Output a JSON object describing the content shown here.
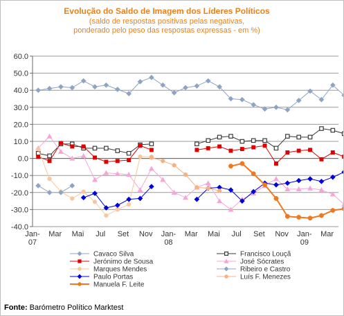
{
  "chart_data": {
    "type": "line",
    "title": "Evolução do Saldo  de Imagem dos Líderes Políticos",
    "subtitle_lines": [
      "(saldo de respostas positivas pelas negativas,",
      "ponderado pelo peso das respostas expressas - em %)"
    ],
    "ylim": [
      -40,
      60
    ],
    "y_ticks": [
      "60.0",
      "50.0",
      "40.0",
      "30.0",
      "20.0",
      "10.0",
      "0.0",
      "-10.0",
      "-20.0",
      "-30.0",
      "-40.0"
    ],
    "y_tick_values": [
      60,
      50,
      40,
      30,
      20,
      10,
      0,
      -10,
      -20,
      -30,
      -40
    ],
    "x_count": 27,
    "x_tick_labels": [
      {
        "i": 0,
        "lines": [
          "Jan-",
          "07"
        ]
      },
      {
        "i": 2,
        "lines": [
          "Mar"
        ]
      },
      {
        "i": 4,
        "lines": [
          "Mai"
        ]
      },
      {
        "i": 6,
        "lines": [
          "Jul"
        ]
      },
      {
        "i": 8,
        "lines": [
          "Set"
        ]
      },
      {
        "i": 10,
        "lines": [
          "Nov"
        ]
      },
      {
        "i": 12,
        "lines": [
          "Jan-",
          "08"
        ]
      },
      {
        "i": 14,
        "lines": [
          "Mar"
        ]
      },
      {
        "i": 16,
        "lines": [
          "Mai"
        ]
      },
      {
        "i": 18,
        "lines": [
          "Jul"
        ]
      },
      {
        "i": 20,
        "lines": [
          "Set"
        ]
      },
      {
        "i": 22,
        "lines": [
          "Nov"
        ]
      },
      {
        "i": 24,
        "lines": [
          "Jan-",
          "09"
        ]
      },
      {
        "i": 26,
        "lines": [
          "Mar"
        ]
      }
    ],
    "grid": "horizontal",
    "legend_position": "bottom",
    "series": [
      {
        "name": "Cavaco Silva",
        "color": "#8ea4c4",
        "marker": "diamond",
        "points": [
          [
            0,
            40.0
          ],
          [
            1,
            41.0
          ],
          [
            2,
            42.0
          ],
          [
            3,
            41.5
          ],
          [
            4,
            45.5
          ],
          [
            5,
            42.0
          ],
          [
            6,
            43.0
          ],
          [
            7,
            40.5
          ],
          [
            8,
            38.0
          ],
          [
            9,
            45.0
          ],
          [
            10,
            47.5
          ],
          [
            11,
            43.0
          ],
          [
            12,
            38.5
          ],
          [
            13,
            41.5
          ],
          [
            14,
            42.5
          ],
          [
            15,
            45.5
          ],
          [
            16,
            42.0
          ],
          [
            17,
            35.0
          ],
          [
            18,
            34.5
          ],
          [
            19,
            31.5
          ],
          [
            20,
            29.0
          ],
          [
            21,
            30.0
          ],
          [
            22,
            28.5
          ],
          [
            23,
            34.0
          ],
          [
            24,
            39.5
          ],
          [
            25,
            34.5
          ],
          [
            26,
            43.0
          ],
          [
            27,
            37.0
          ]
        ]
      },
      {
        "name": "Francisco Louçã",
        "color": "#3a3a3a",
        "marker": "square",
        "points": [
          [
            0,
            3.0
          ],
          [
            1,
            1.5
          ],
          [
            2,
            8.5
          ],
          [
            3,
            8.5
          ],
          [
            4,
            6.0
          ],
          [
            5,
            6.0
          ],
          [
            6,
            6.0
          ],
          [
            7,
            4.5
          ],
          [
            8,
            3.0
          ],
          [
            9,
            8.0
          ],
          [
            10,
            8.5
          ],
          [
            14,
            8.5
          ],
          [
            15,
            10.5
          ],
          [
            16,
            12.5
          ],
          [
            17,
            13.0
          ],
          [
            18,
            10.0
          ],
          [
            19,
            10.5
          ],
          [
            20,
            10.5
          ],
          [
            21,
            6.0
          ],
          [
            22,
            13.0
          ],
          [
            23,
            12.5
          ],
          [
            24,
            12.5
          ],
          [
            25,
            17.5
          ],
          [
            26,
            16.5
          ],
          [
            27,
            14.5
          ]
        ]
      },
      {
        "name": "Jerónimo de Sousa",
        "color": "#e00000",
        "marker": "square",
        "points": [
          [
            0,
            1.0
          ],
          [
            1,
            -1.5
          ],
          [
            2,
            9.0
          ],
          [
            3,
            7.0
          ],
          [
            4,
            7.0
          ],
          [
            5,
            0.5
          ],
          [
            6,
            -2.0
          ],
          [
            7,
            -1.5
          ],
          [
            8,
            -1.0
          ],
          [
            9,
            7.5
          ],
          [
            10,
            5.0
          ],
          [
            14,
            5.0
          ],
          [
            15,
            6.0
          ],
          [
            16,
            7.0
          ],
          [
            17,
            4.5
          ],
          [
            18,
            5.5
          ],
          [
            19,
            6.5
          ],
          [
            20,
            7.5
          ],
          [
            21,
            -3.0
          ],
          [
            22,
            3.5
          ],
          [
            23,
            4.5
          ],
          [
            24,
            5.0
          ],
          [
            25,
            -0.5
          ],
          [
            26,
            3.5
          ],
          [
            27,
            1.0
          ]
        ]
      },
      {
        "name": "José Sócrates",
        "color": "#f4a6d8",
        "marker": "triangle",
        "points": [
          [
            0,
            6.0
          ],
          [
            1,
            13.0
          ],
          [
            2,
            4.0
          ],
          [
            3,
            0.0
          ],
          [
            4,
            1.5
          ],
          [
            5,
            -12.5
          ],
          [
            6,
            -8.5
          ],
          [
            7,
            -9.0
          ],
          [
            8,
            -9.5
          ],
          [
            9,
            -18.5
          ],
          [
            10,
            -6.0
          ],
          [
            11,
            -12.5
          ],
          [
            12,
            -20.0
          ],
          [
            13,
            -23.0
          ],
          [
            14,
            -17.0
          ],
          [
            15,
            -14.5
          ],
          [
            16,
            -25.0
          ],
          [
            17,
            -30.0
          ],
          [
            18,
            -24.0
          ],
          [
            19,
            -20.5
          ],
          [
            20,
            -16.0
          ],
          [
            21,
            -12.0
          ],
          [
            22,
            -18.0
          ],
          [
            23,
            -18.0
          ],
          [
            24,
            -17.5
          ],
          [
            25,
            -18.5
          ],
          [
            26,
            -21.0
          ],
          [
            27,
            -27.0
          ]
        ]
      },
      {
        "name": "Marques Mendes",
        "color": "#f8c7a0",
        "marker": "circle",
        "points": [
          [
            0,
            5.5
          ],
          [
            1,
            -12.0
          ],
          [
            2,
            -19.5
          ],
          [
            3,
            -23.5
          ],
          [
            4,
            -19.5
          ],
          [
            5,
            -25.5
          ],
          [
            6,
            -33.5
          ],
          [
            7,
            -30.0
          ],
          [
            8,
            -27.0
          ],
          [
            9,
            1.0
          ],
          [
            10,
            1.0
          ]
        ]
      },
      {
        "name": "Ribeiro e Castro",
        "color": "#8ea4c4",
        "marker": "diamond",
        "points": [
          [
            0,
            -16.0
          ],
          [
            1,
            -20.0
          ],
          [
            2,
            -20.0
          ],
          [
            3,
            -16.0
          ]
        ]
      },
      {
        "name": "Paulo Portas",
        "color": "#0000dd",
        "marker": "diamond",
        "points": [
          [
            4,
            -23.0
          ],
          [
            5,
            -20.5
          ],
          [
            6,
            -29.0
          ],
          [
            7,
            -27.5
          ],
          [
            8,
            -24.0
          ],
          [
            9,
            -23.5
          ],
          [
            10,
            -16.5
          ],
          [
            14,
            -24.0
          ],
          [
            15,
            -17.5
          ],
          [
            16,
            -17.0
          ],
          [
            17,
            -18.5
          ],
          [
            18,
            -25.0
          ],
          [
            19,
            -19.5
          ],
          [
            20,
            -14.5
          ],
          [
            21,
            -15.5
          ],
          [
            22,
            -14.5
          ],
          [
            23,
            -13.0
          ],
          [
            24,
            -12.0
          ],
          [
            25,
            -13.5
          ],
          [
            26,
            -11.0
          ],
          [
            27,
            -8.0
          ]
        ]
      },
      {
        "name": "Luís F. Menezes",
        "color": "#f8b080",
        "marker": "circle",
        "points": [
          [
            10,
            0.5
          ],
          [
            11,
            -1.5
          ],
          [
            12,
            -4.0
          ],
          [
            13,
            -9.5
          ],
          [
            14,
            -17.0
          ],
          [
            15,
            -17.5
          ],
          [
            16,
            -19.0
          ]
        ]
      },
      {
        "name": "Manuela F. Leite",
        "color": "#f07820",
        "marker": "circle",
        "points": [
          [
            17,
            -4.5
          ],
          [
            18,
            -3.0
          ],
          [
            19,
            -9.0
          ],
          [
            20,
            -15.5
          ],
          [
            21,
            -23.5
          ],
          [
            22,
            -34.0
          ],
          [
            23,
            -34.5
          ],
          [
            24,
            -35.0
          ],
          [
            25,
            -33.5
          ],
          [
            26,
            -30.5
          ],
          [
            27,
            -29.5
          ]
        ]
      }
    ],
    "legend_columns": [
      [
        "Cavaco Silva",
        "Jerónimo de Sousa",
        "Marques Mendes",
        "Paulo Portas",
        "Manuela F. Leite"
      ],
      [
        "Francisco Louçã",
        "José Sócrates",
        "Ribeiro e Castro",
        "Luís F. Menezes"
      ]
    ],
    "source_label": "Fonte:",
    "source_text": " Barómetro Político Marktest"
  }
}
